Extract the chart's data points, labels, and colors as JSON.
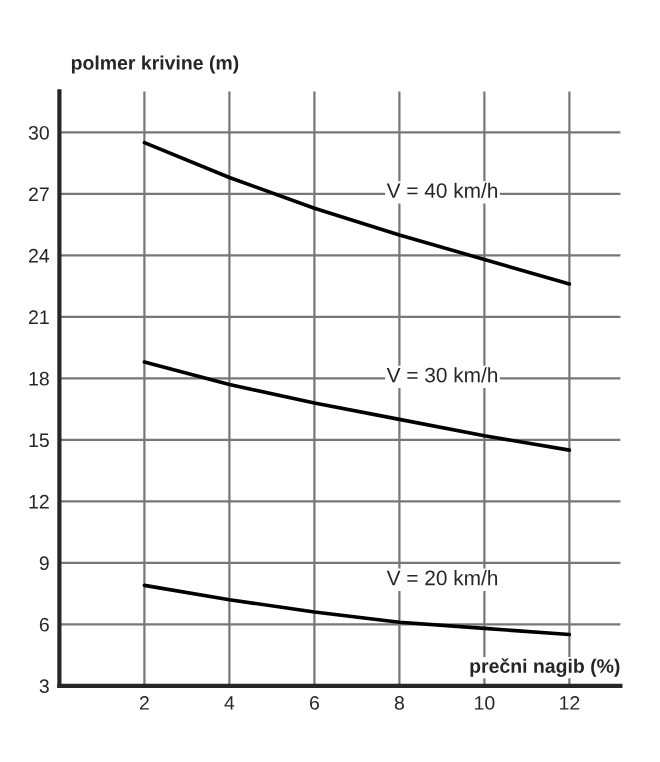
{
  "chart_data": {
    "type": "line",
    "xlabel": "prečni nagib (%)",
    "ylabel": "polmer krivine (m)",
    "x": [
      2,
      4,
      6,
      8,
      10,
      12
    ],
    "series": [
      {
        "name": "V = 40 km/h",
        "color": "#000000",
        "values": [
          29.5,
          27.8,
          26.3,
          25.0,
          23.8,
          22.6
        ]
      },
      {
        "name": "V = 30 km/h",
        "color": "#000000",
        "values": [
          18.8,
          17.7,
          16.8,
          16.0,
          15.2,
          14.5
        ]
      },
      {
        "name": "V = 20 km/h",
        "color": "#000000",
        "values": [
          7.9,
          7.2,
          6.6,
          6.1,
          5.8,
          5.5
        ]
      }
    ],
    "xlim": [
      0,
      13.2
    ],
    "ylim": [
      3,
      32
    ],
    "xticks": [
      2,
      4,
      6,
      8,
      10,
      12
    ],
    "yticks": [
      3,
      6,
      9,
      12,
      15,
      18,
      21,
      24,
      27,
      30
    ],
    "grid": true,
    "marker": "none",
    "line_style": "solid"
  }
}
